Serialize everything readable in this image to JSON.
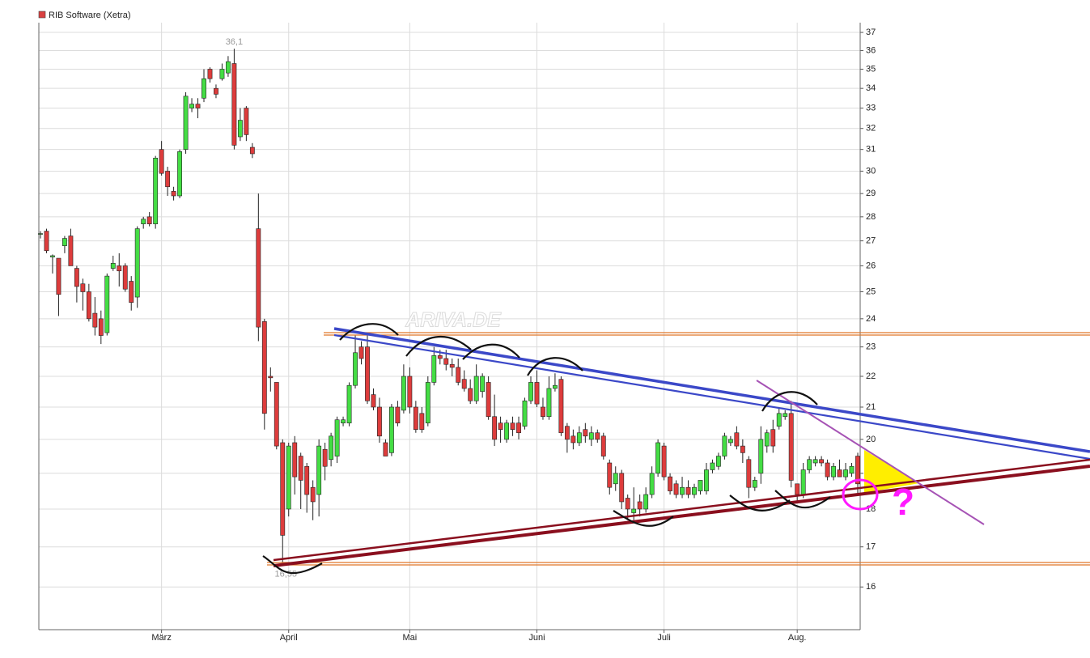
{
  "chart_data": {
    "type": "candlestick",
    "legend": "RIB Software (Xetra)",
    "legend_color": "#d94040",
    "up_color": "#44dd44",
    "down_color": "#dd3c3c",
    "outline_color": "#222222",
    "log_scale": true,
    "grid": true,
    "max_label": "36,1",
    "min_label": "16,55",
    "watermark": "ARIVA.DE",
    "annotation_text": "?",
    "ylim": [
      15,
      37.55
    ],
    "yticks": [
      16,
      17,
      18,
      19,
      20,
      21,
      22,
      23,
      24,
      25,
      26,
      27,
      28,
      29,
      30,
      31,
      32,
      33,
      34,
      35,
      36,
      37
    ],
    "categories": [
      null,
      null,
      null,
      null,
      null,
      null,
      null,
      null,
      null,
      null,
      null,
      null,
      null,
      null,
      null,
      null,
      null,
      null,
      null,
      null,
      "März",
      null,
      null,
      null,
      null,
      null,
      null,
      null,
      null,
      null,
      null,
      null,
      null,
      null,
      null,
      null,
      null,
      null,
      null,
      null,
      null,
      "April",
      null,
      null,
      null,
      null,
      null,
      null,
      null,
      null,
      null,
      null,
      null,
      null,
      null,
      null,
      null,
      null,
      null,
      null,
      null,
      "Mai",
      null,
      null,
      null,
      null,
      null,
      null,
      null,
      null,
      null,
      null,
      null,
      null,
      null,
      null,
      null,
      null,
      null,
      null,
      null,
      null,
      "Juni",
      null,
      null,
      null,
      null,
      null,
      null,
      null,
      null,
      null,
      null,
      null,
      null,
      null,
      null,
      null,
      null,
      null,
      null,
      null,
      null,
      "Juli",
      null,
      null,
      null,
      null,
      null,
      null,
      null,
      null,
      null,
      null,
      null,
      null,
      null,
      null,
      null,
      null,
      null,
      null,
      null,
      null,
      null,
      "Aug.",
      null,
      null,
      null,
      null,
      null,
      null,
      null,
      null,
      null,
      null
    ],
    "open": [
      27.3,
      27.4,
      26.35,
      26.3,
      26.8,
      27.2,
      25.9,
      25.3,
      25.0,
      24.2,
      24.0,
      23.5,
      25.9,
      26.0,
      26.0,
      25.4,
      24.8,
      27.7,
      28.0,
      27.7,
      31.0,
      30.0,
      29.1,
      28.9,
      31.0,
      33.0,
      33.2,
      33.5,
      35.0,
      34.0,
      34.5,
      34.8,
      35.3,
      31.6,
      33.0,
      31.1,
      27.5,
      23.9,
      22.0,
      21.8,
      19.9,
      18.0,
      19.9,
      19.5,
      19.2,
      18.6,
      18.4,
      19.7,
      19.4,
      19.5,
      20.5,
      20.5,
      21.7,
      23.0,
      23.0,
      21.4,
      21.0,
      19.9,
      19.6,
      21.0,
      20.9,
      22.0,
      21.0,
      20.8,
      20.5,
      21.8,
      22.7,
      22.6,
      22.4,
      22.3,
      21.9,
      21.6,
      21.2,
      21.5,
      21.8,
      20.7,
      20.5,
      20.0,
      20.5,
      20.5,
      20.4,
      21.2,
      21.8,
      21.0,
      20.7,
      21.6,
      21.9,
      20.4,
      20.1,
      19.9,
      20.3,
      20.0,
      20.2,
      20.1,
      19.3,
      18.7,
      19.0,
      18.3,
      17.9,
      18.2,
      18.0,
      18.4,
      19.0,
      19.8,
      18.9,
      18.7,
      18.4,
      18.6,
      18.4,
      18.5,
      18.5,
      19.1,
      19.2,
      19.5,
      19.9,
      20.2,
      19.8,
      19.4,
      18.6,
      19.0,
      19.8,
      20.3,
      20.4,
      20.7,
      20.8,
      18.7,
      18.4,
      19.1,
      19.3,
      19.4,
      19.3,
      18.9,
      19.1,
      18.9,
      19.0,
      19.5
    ],
    "high": [
      27.4,
      27.5,
      26.45,
      26.3,
      27.2,
      27.5,
      26.0,
      25.5,
      25.3,
      24.8,
      24.3,
      25.7,
      26.4,
      26.5,
      26.1,
      25.6,
      27.6,
      28.0,
      28.2,
      30.7,
      31.4,
      30.2,
      29.3,
      31.0,
      33.8,
      33.5,
      33.5,
      35.0,
      35.1,
      34.2,
      35.3,
      35.7,
      36.1,
      33.0,
      33.1,
      31.3,
      29.0,
      24.0,
      22.3,
      21.8,
      20.0,
      19.9,
      20.1,
      19.6,
      19.3,
      18.8,
      20.0,
      19.9,
      20.2,
      20.7,
      20.7,
      21.8,
      23.4,
      23.2,
      23.5,
      21.6,
      21.3,
      20.0,
      21.1,
      21.2,
      22.4,
      22.3,
      21.2,
      21.0,
      22.0,
      23.0,
      22.9,
      22.9,
      22.6,
      22.6,
      22.2,
      21.9,
      22.4,
      22.1,
      22.0,
      21.4,
      20.7,
      20.6,
      20.7,
      20.7,
      21.3,
      22.0,
      22.2,
      21.3,
      22.0,
      22.1,
      22.0,
      20.5,
      20.3,
      20.4,
      20.5,
      20.4,
      20.3,
      20.2,
      19.4,
      19.2,
      19.1,
      18.4,
      18.6,
      18.4,
      18.6,
      19.2,
      20.0,
      19.9,
      19.0,
      18.8,
      18.9,
      18.8,
      18.7,
      18.8,
      19.3,
      19.4,
      19.6,
      20.2,
      20.1,
      20.4,
      20.0,
      19.5,
      18.9,
      20.4,
      20.3,
      20.6,
      21.0,
      20.9,
      21.2,
      18.7,
      19.3,
      19.5,
      19.5,
      19.5,
      19.4,
      19.3,
      19.4,
      19.3,
      19.3,
      19.6
    ],
    "low": [
      27.1,
      26.5,
      25.7,
      24.1,
      26.5,
      26.0,
      24.6,
      24.3,
      23.9,
      23.4,
      23.1,
      23.4,
      25.8,
      25.2,
      25.0,
      24.3,
      24.4,
      27.5,
      27.6,
      27.5,
      29.8,
      28.9,
      28.7,
      28.8,
      30.8,
      32.8,
      32.5,
      33.3,
      34.3,
      33.5,
      34.4,
      34.6,
      31.0,
      31.4,
      31.4,
      30.6,
      23.2,
      20.3,
      21.5,
      19.7,
      16.55,
      17.8,
      18.4,
      18.0,
      17.9,
      17.7,
      17.8,
      18.8,
      19.2,
      19.3,
      20.4,
      20.4,
      21.6,
      22.4,
      21.1,
      20.9,
      19.9,
      19.5,
      19.5,
      20.4,
      20.8,
      20.8,
      20.2,
      20.2,
      20.4,
      21.7,
      22.4,
      22.2,
      22.0,
      21.7,
      21.5,
      21.1,
      21.1,
      21.3,
      20.6,
      19.8,
      19.9,
      19.9,
      20.1,
      20.0,
      20.3,
      21.1,
      21.0,
      20.6,
      20.6,
      21.5,
      20.1,
      19.6,
      19.7,
      19.8,
      19.9,
      19.8,
      19.9,
      19.4,
      18.4,
      18.5,
      18.0,
      17.7,
      17.7,
      17.8,
      17.9,
      18.3,
      18.9,
      18.8,
      18.4,
      18.3,
      18.3,
      18.3,
      18.3,
      18.4,
      18.4,
      19.0,
      19.1,
      19.4,
      19.8,
      19.7,
      19.3,
      18.3,
      18.5,
      18.7,
      19.6,
      19.6,
      20.3,
      20.6,
      18.6,
      18.2,
      18.3,
      19.0,
      19.2,
      19.2,
      18.8,
      18.8,
      18.9,
      18.8,
      18.9,
      18.4
    ],
    "close": [
      27.3,
      26.6,
      26.4,
      24.9,
      27.1,
      26.0,
      25.2,
      25.0,
      24.0,
      23.7,
      23.4,
      25.6,
      26.1,
      25.8,
      25.1,
      24.6,
      27.5,
      27.9,
      27.7,
      30.6,
      29.9,
      29.3,
      28.9,
      30.9,
      33.6,
      33.2,
      33.0,
      34.5,
      34.5,
      33.7,
      35.0,
      35.4,
      31.2,
      32.4,
      31.7,
      30.8,
      23.7,
      20.8,
      21.95,
      19.8,
      17.3,
      19.8,
      18.9,
      18.8,
      18.4,
      18.2,
      19.8,
      19.2,
      20.1,
      20.6,
      20.6,
      21.7,
      22.8,
      22.6,
      21.2,
      21.0,
      20.1,
      19.5,
      21.0,
      20.5,
      22.0,
      21.0,
      20.3,
      20.3,
      21.8,
      22.7,
      22.6,
      22.4,
      22.3,
      21.8,
      21.6,
      21.2,
      22.0,
      22.0,
      20.7,
      20.0,
      20.3,
      20.5,
      20.3,
      20.2,
      21.2,
      21.8,
      21.1,
      20.7,
      21.6,
      21.7,
      20.2,
      20.0,
      19.9,
      20.2,
      20.1,
      20.2,
      20.0,
      19.5,
      18.6,
      19.0,
      18.2,
      18.0,
      18.0,
      18.0,
      18.4,
      19.0,
      19.9,
      18.9,
      18.5,
      18.4,
      18.6,
      18.4,
      18.6,
      18.8,
      19.1,
      19.3,
      19.5,
      20.1,
      20.0,
      19.8,
      19.6,
      18.6,
      18.8,
      20.0,
      20.2,
      19.8,
      20.8,
      20.8,
      18.8,
      18.4,
      19.1,
      19.4,
      19.4,
      19.3,
      18.9,
      19.2,
      18.9,
      19.1,
      19.2,
      18.7
    ]
  }
}
